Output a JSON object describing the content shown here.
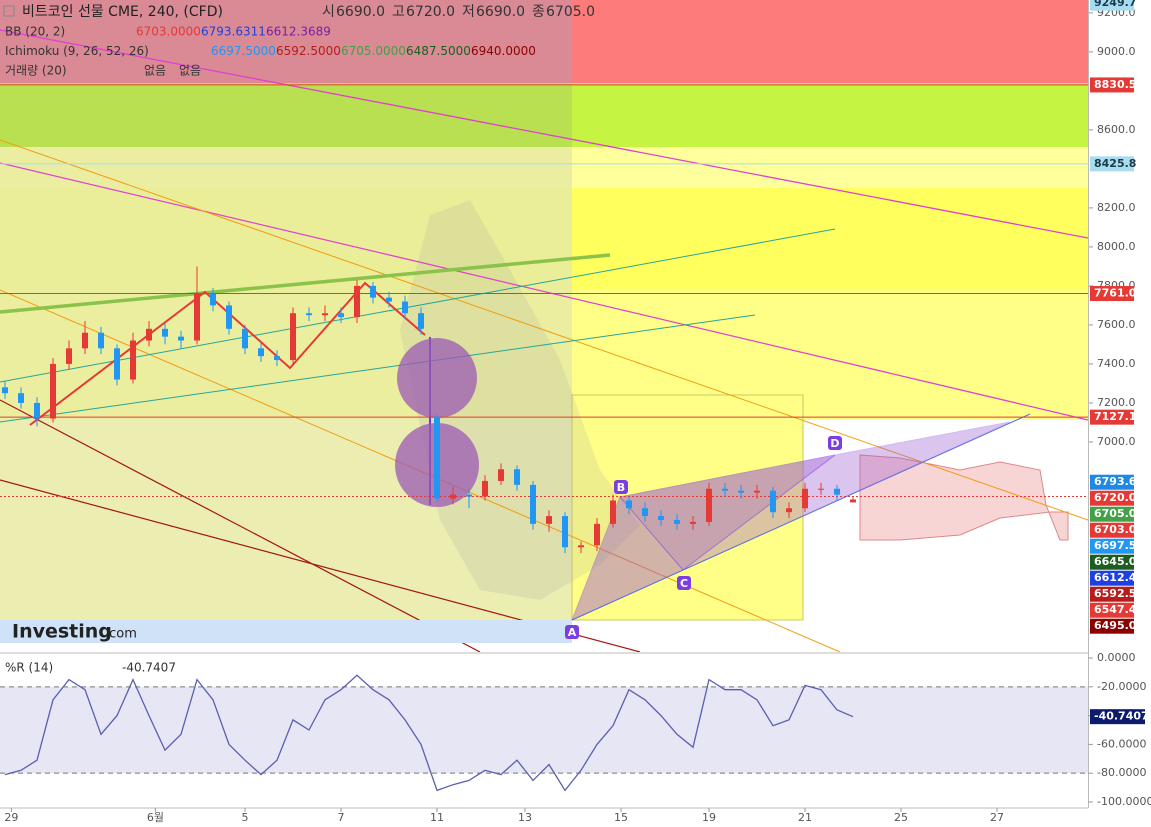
{
  "chart_data": [
    {
      "type": "candlestick",
      "title": "비트코인 선물 CME, 240, (CFD)",
      "ohlc_labels": [
        {
          "label": "시",
          "value": "6690.0"
        },
        {
          "label": "고",
          "value": "6720.0"
        },
        {
          "label": "저",
          "value": "6690.0"
        },
        {
          "label": "종",
          "value": "6705.0"
        }
      ],
      "indicators": [
        {
          "name": "BB (20, 2)",
          "values": [
            "6703.0000",
            "6793.6311",
            "6612.3689"
          ],
          "colors": [
            "#e53935",
            "#1e40e0",
            "#7b1fa2"
          ]
        },
        {
          "name": "Ichimoku (9, 26, 52, 26)",
          "values": [
            "6697.5000",
            "6592.5000",
            "6705.0000",
            "6487.5000",
            "6940.0000"
          ],
          "colors": [
            "#2196f3",
            "#b71c1c",
            "#43a047",
            "#1b5e20",
            "#8b0000"
          ]
        },
        {
          "name": "거래량 (20)",
          "values": [
            "없음",
            "없음"
          ],
          "colors": [
            "#333333",
            "#333333"
          ]
        }
      ],
      "annotations": [
        "A",
        "B",
        "C",
        "D"
      ],
      "watermark": [
        "Investing",
        ".com"
      ],
      "up_color": "#e53935",
      "down_color": "#2196f3",
      "open": [
        7280,
        7250,
        7200,
        7120,
        7400,
        7480,
        7560,
        7480,
        7320,
        7520,
        7580,
        7540,
        7520,
        7760,
        7700,
        7580,
        7480,
        7440,
        7420,
        7660,
        7650,
        7660,
        7640,
        7800,
        7740,
        7720,
        7660,
        7130,
        6710,
        6730,
        6720,
        6800,
        6860,
        6780,
        6580,
        6620,
        6460,
        6470,
        6580,
        6700,
        6660,
        6620,
        6600,
        6580,
        6590,
        6760,
        6750,
        6740,
        6750,
        6640,
        6660,
        6760,
        6760,
        6690
      ],
      "high": [
        7310,
        7280,
        7230,
        7430,
        7520,
        7620,
        7590,
        7500,
        7560,
        7620,
        7610,
        7570,
        7900,
        7790,
        7720,
        7600,
        7510,
        7470,
        7690,
        7690,
        7700,
        7690,
        7830,
        7820,
        7770,
        7750,
        7690,
        7140,
        6770,
        6760,
        6830,
        6890,
        6880,
        6800,
        6650,
        6640,
        6490,
        6610,
        6730,
        6720,
        6690,
        6650,
        6630,
        6620,
        6790,
        6790,
        6780,
        6780,
        6770,
        6690,
        6790,
        6790,
        6780,
        6720
      ],
      "low": [
        7220,
        7170,
        7080,
        7100,
        7370,
        7450,
        7450,
        7290,
        7300,
        7490,
        7500,
        7480,
        7500,
        7670,
        7550,
        7450,
        7410,
        7390,
        7400,
        7620,
        7620,
        7610,
        7610,
        7710,
        7690,
        7630,
        7550,
        6690,
        6680,
        6660,
        6700,
        6780,
        6750,
        6550,
        6540,
        6430,
        6430,
        6440,
        6560,
        6630,
        6590,
        6570,
        6550,
        6550,
        6570,
        6720,
        6710,
        6710,
        6610,
        6610,
        6640,
        6730,
        6700,
        6690
      ],
      "close": [
        7250,
        7200,
        7120,
        7400,
        7480,
        7560,
        7480,
        7320,
        7520,
        7580,
        7540,
        7520,
        7760,
        7700,
        7580,
        7480,
        7440,
        7420,
        7660,
        7650,
        7660,
        7640,
        7800,
        7740,
        7720,
        7660,
        7580,
        6710,
        6730,
        6720,
        6800,
        6860,
        6780,
        6580,
        6620,
        6460,
        6470,
        6580,
        6700,
        6660,
        6620,
        6600,
        6580,
        6590,
        6760,
        6750,
        6740,
        6750,
        6640,
        6660,
        6760,
        6760,
        6730,
        6705
      ],
      "xlim": [
        -0.3125,
        67.6875
      ],
      "ylim": [
        5923,
        9266
      ],
      "yticks": [
        {
          "value": 9200,
          "label": "9200.0"
        },
        {
          "value": 9000,
          "label": "9000.0"
        },
        {
          "value": 8600,
          "label": "8600.0"
        },
        {
          "value": 8200,
          "label": "8200.0"
        },
        {
          "value": 8000,
          "label": "8000.0"
        },
        {
          "value": 7800,
          "label": "7800.0"
        },
        {
          "value": 7600,
          "label": "7600.0"
        },
        {
          "value": 7400,
          "label": "7400.0"
        },
        {
          "value": 7200,
          "label": "7200.0"
        },
        {
          "value": 7000,
          "label": "7000.0"
        }
      ],
      "price_levels": [
        {
          "value": 9249.7,
          "label": "9249.7",
          "color": "#a8dcef",
          "text_color": "#1a3a4a",
          "line": false
        },
        {
          "value": 8830.5,
          "label": "8830.5",
          "color": "#e53935",
          "text_color": "#ffffff",
          "line": true
        },
        {
          "value": 8425.8,
          "label": "8425.8",
          "color": "#a8dcef",
          "text_color": "#1a3a4a",
          "line": true
        },
        {
          "value": 7761.0,
          "label": "7761.0",
          "color": "#e53935",
          "text_color": "#ffffff",
          "line": true
        },
        {
          "value": 7127.1,
          "label": "7127.1",
          "color": "#e53935",
          "text_color": "#ffffff",
          "line": true
        },
        {
          "value": 6793.6,
          "label": "6793.6",
          "color": "#1e88e5",
          "text_color": "#ffffff",
          "line": false
        },
        {
          "value": 6720.0,
          "label": "6720.0",
          "color": "#e53935",
          "text_color": "#ffffff",
          "line": true
        },
        {
          "value": 6705.0,
          "label": "6705.0",
          "color": "#43a047",
          "text_color": "#ffffff",
          "line": false
        },
        {
          "value": 6703.0,
          "label": "6703.0",
          "color": "#e53935",
          "text_color": "#ffffff",
          "line": false
        },
        {
          "value": 6697.5,
          "label": "6697.5",
          "color": "#2196f3",
          "text_color": "#ffffff",
          "line": false
        },
        {
          "value": 6645.0,
          "label": "6645.0",
          "color": "#1b5e20",
          "text_color": "#ffffff",
          "line": false
        },
        {
          "value": 6612.4,
          "label": "6612.4",
          "color": "#1e40e0",
          "text_color": "#ffffff",
          "line": false
        },
        {
          "value": 6592.5,
          "label": "6592.5",
          "color": "#b71c1c",
          "text_color": "#ffffff",
          "line": false
        },
        {
          "value": 6547.4,
          "label": "6547.4",
          "color": "#e53935",
          "text_color": "#ffffff",
          "line": false
        },
        {
          "value": 6495.0,
          "label": "6495.0",
          "color": "#8b0000",
          "text_color": "#ffffff",
          "line": false
        }
      ]
    },
    {
      "type": "line",
      "title": "%R (14)",
      "series": [
        {
          "name": "%R",
          "color": "#5a5fb0",
          "values": [
            -81,
            -78,
            -71,
            -29,
            -15,
            -22,
            -53,
            -40,
            -15,
            -40,
            -64,
            -53,
            -15,
            -29,
            -60,
            -71,
            -81,
            -71,
            -43,
            -50,
            -29,
            -22,
            -12,
            -22,
            -29,
            -43,
            -60,
            -92,
            -88,
            -85,
            -78,
            -81,
            -71,
            -85,
            -74,
            -92,
            -78,
            -60,
            -47,
            -22,
            -29,
            -40,
            -53,
            -62,
            -15,
            -22,
            -22,
            -29,
            -47,
            -43,
            -19,
            -22,
            -36,
            -40.7407
          ]
        }
      ],
      "bands": [
        -20,
        -80
      ],
      "xlim": [
        -0.3125,
        67.6875
      ],
      "ylim": [
        -104.2,
        4.2
      ],
      "yticks": [
        {
          "value": 0,
          "label": "0.0000"
        },
        {
          "value": -20,
          "label": "-20.0000"
        },
        {
          "value": -40,
          "label": "-40.0000"
        },
        {
          "value": -60,
          "label": "-60.0000"
        },
        {
          "value": -80,
          "label": "-80.0000"
        },
        {
          "value": -100,
          "label": "-100.0000"
        }
      ],
      "xticks": [
        {
          "value": 0.4,
          "label": "29"
        },
        {
          "value": 9.4,
          "label": "6월"
        },
        {
          "value": 15,
          "label": "5"
        },
        {
          "value": 21,
          "label": "7"
        },
        {
          "value": 27,
          "label": "11"
        },
        {
          "value": 32.5,
          "label": "13"
        },
        {
          "value": 38.5,
          "label": "15"
        },
        {
          "value": 44,
          "label": "19"
        },
        {
          "value": 50,
          "label": "21"
        },
        {
          "value": 56,
          "label": "25"
        },
        {
          "value": 62,
          "label": "27"
        }
      ]
    }
  ]
}
